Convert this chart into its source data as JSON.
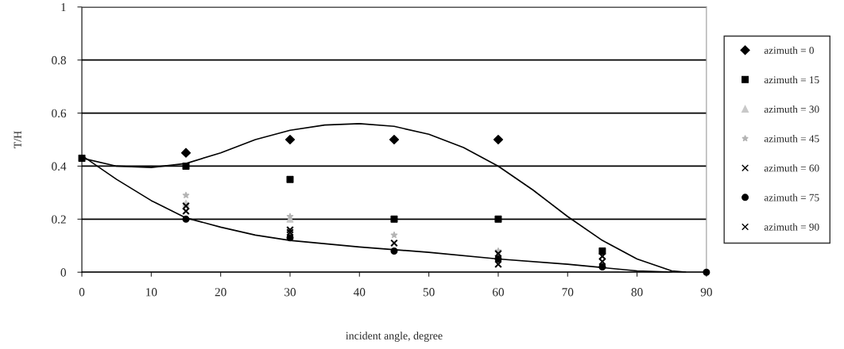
{
  "chart_data": {
    "type": "scatter",
    "xlabel": "incident angle, degree",
    "ylabel": "T/H",
    "xlim": [
      0,
      90
    ],
    "xticks": [
      0,
      10,
      20,
      30,
      40,
      50,
      60,
      70,
      80,
      90
    ],
    "ylim": [
      0,
      1
    ],
    "yticks": [
      0,
      0.2,
      0.4,
      0.6,
      0.8,
      1
    ],
    "grid": "y",
    "legend": "right",
    "x": [
      0,
      15,
      30,
      45,
      60,
      75,
      90
    ],
    "series": [
      {
        "name": "azimuth = 0",
        "color": "#000000",
        "marker": "diamond",
        "values": [
          null,
          0.45,
          0.5,
          0.5,
          0.5,
          null,
          null
        ]
      },
      {
        "name": "azimuth = 15",
        "color": "#000000",
        "marker": "square",
        "values": [
          0.43,
          0.4,
          0.35,
          0.2,
          0.2,
          0.08,
          null
        ]
      },
      {
        "name": "azimuth = 30",
        "color": "#c8c8c8",
        "marker": "triangle",
        "values": [
          null,
          0.26,
          0.2,
          null,
          null,
          null,
          null
        ]
      },
      {
        "name": "azimuth = 45",
        "color": "#b4b4b4",
        "marker": "star",
        "values": [
          null,
          0.29,
          0.21,
          0.14,
          0.08,
          null,
          null
        ]
      },
      {
        "name": "azimuth = 60",
        "color": "#000000",
        "marker": "cross",
        "values": [
          null,
          0.25,
          0.15,
          null,
          0.07,
          0.04,
          null
        ]
      },
      {
        "name": "azimuth = 75",
        "color": "#000000",
        "marker": "circle",
        "values": [
          null,
          0.2,
          0.13,
          0.08,
          0.05,
          0.02,
          0
        ]
      },
      {
        "name": "azimuth = 90",
        "color": "#000000",
        "marker": "cross",
        "values": [
          null,
          0.23,
          0.16,
          0.11,
          0.03,
          0.06,
          null
        ]
      },
      {
        "type": "line",
        "color": "#000000",
        "marker": "none",
        "x": [
          0,
          5,
          10,
          15,
          20,
          25,
          30,
          35,
          40,
          45,
          50,
          55,
          60,
          65,
          70,
          75,
          80,
          85,
          87
        ],
        "values": [
          0.43,
          0.4,
          0.395,
          0.41,
          0.45,
          0.5,
          0.535,
          0.555,
          0.56,
          0.55,
          0.52,
          0.47,
          0.4,
          0.31,
          0.21,
          0.12,
          0.05,
          0.005,
          0
        ]
      },
      {
        "type": "line",
        "color": "#000000",
        "marker": "none",
        "x": [
          0,
          5,
          10,
          15,
          20,
          25,
          30,
          40,
          50,
          60,
          70,
          80,
          85
        ],
        "values": [
          0.44,
          0.35,
          0.27,
          0.205,
          0.17,
          0.14,
          0.12,
          0.095,
          0.075,
          0.05,
          0.03,
          0.005,
          0
        ]
      }
    ]
  }
}
